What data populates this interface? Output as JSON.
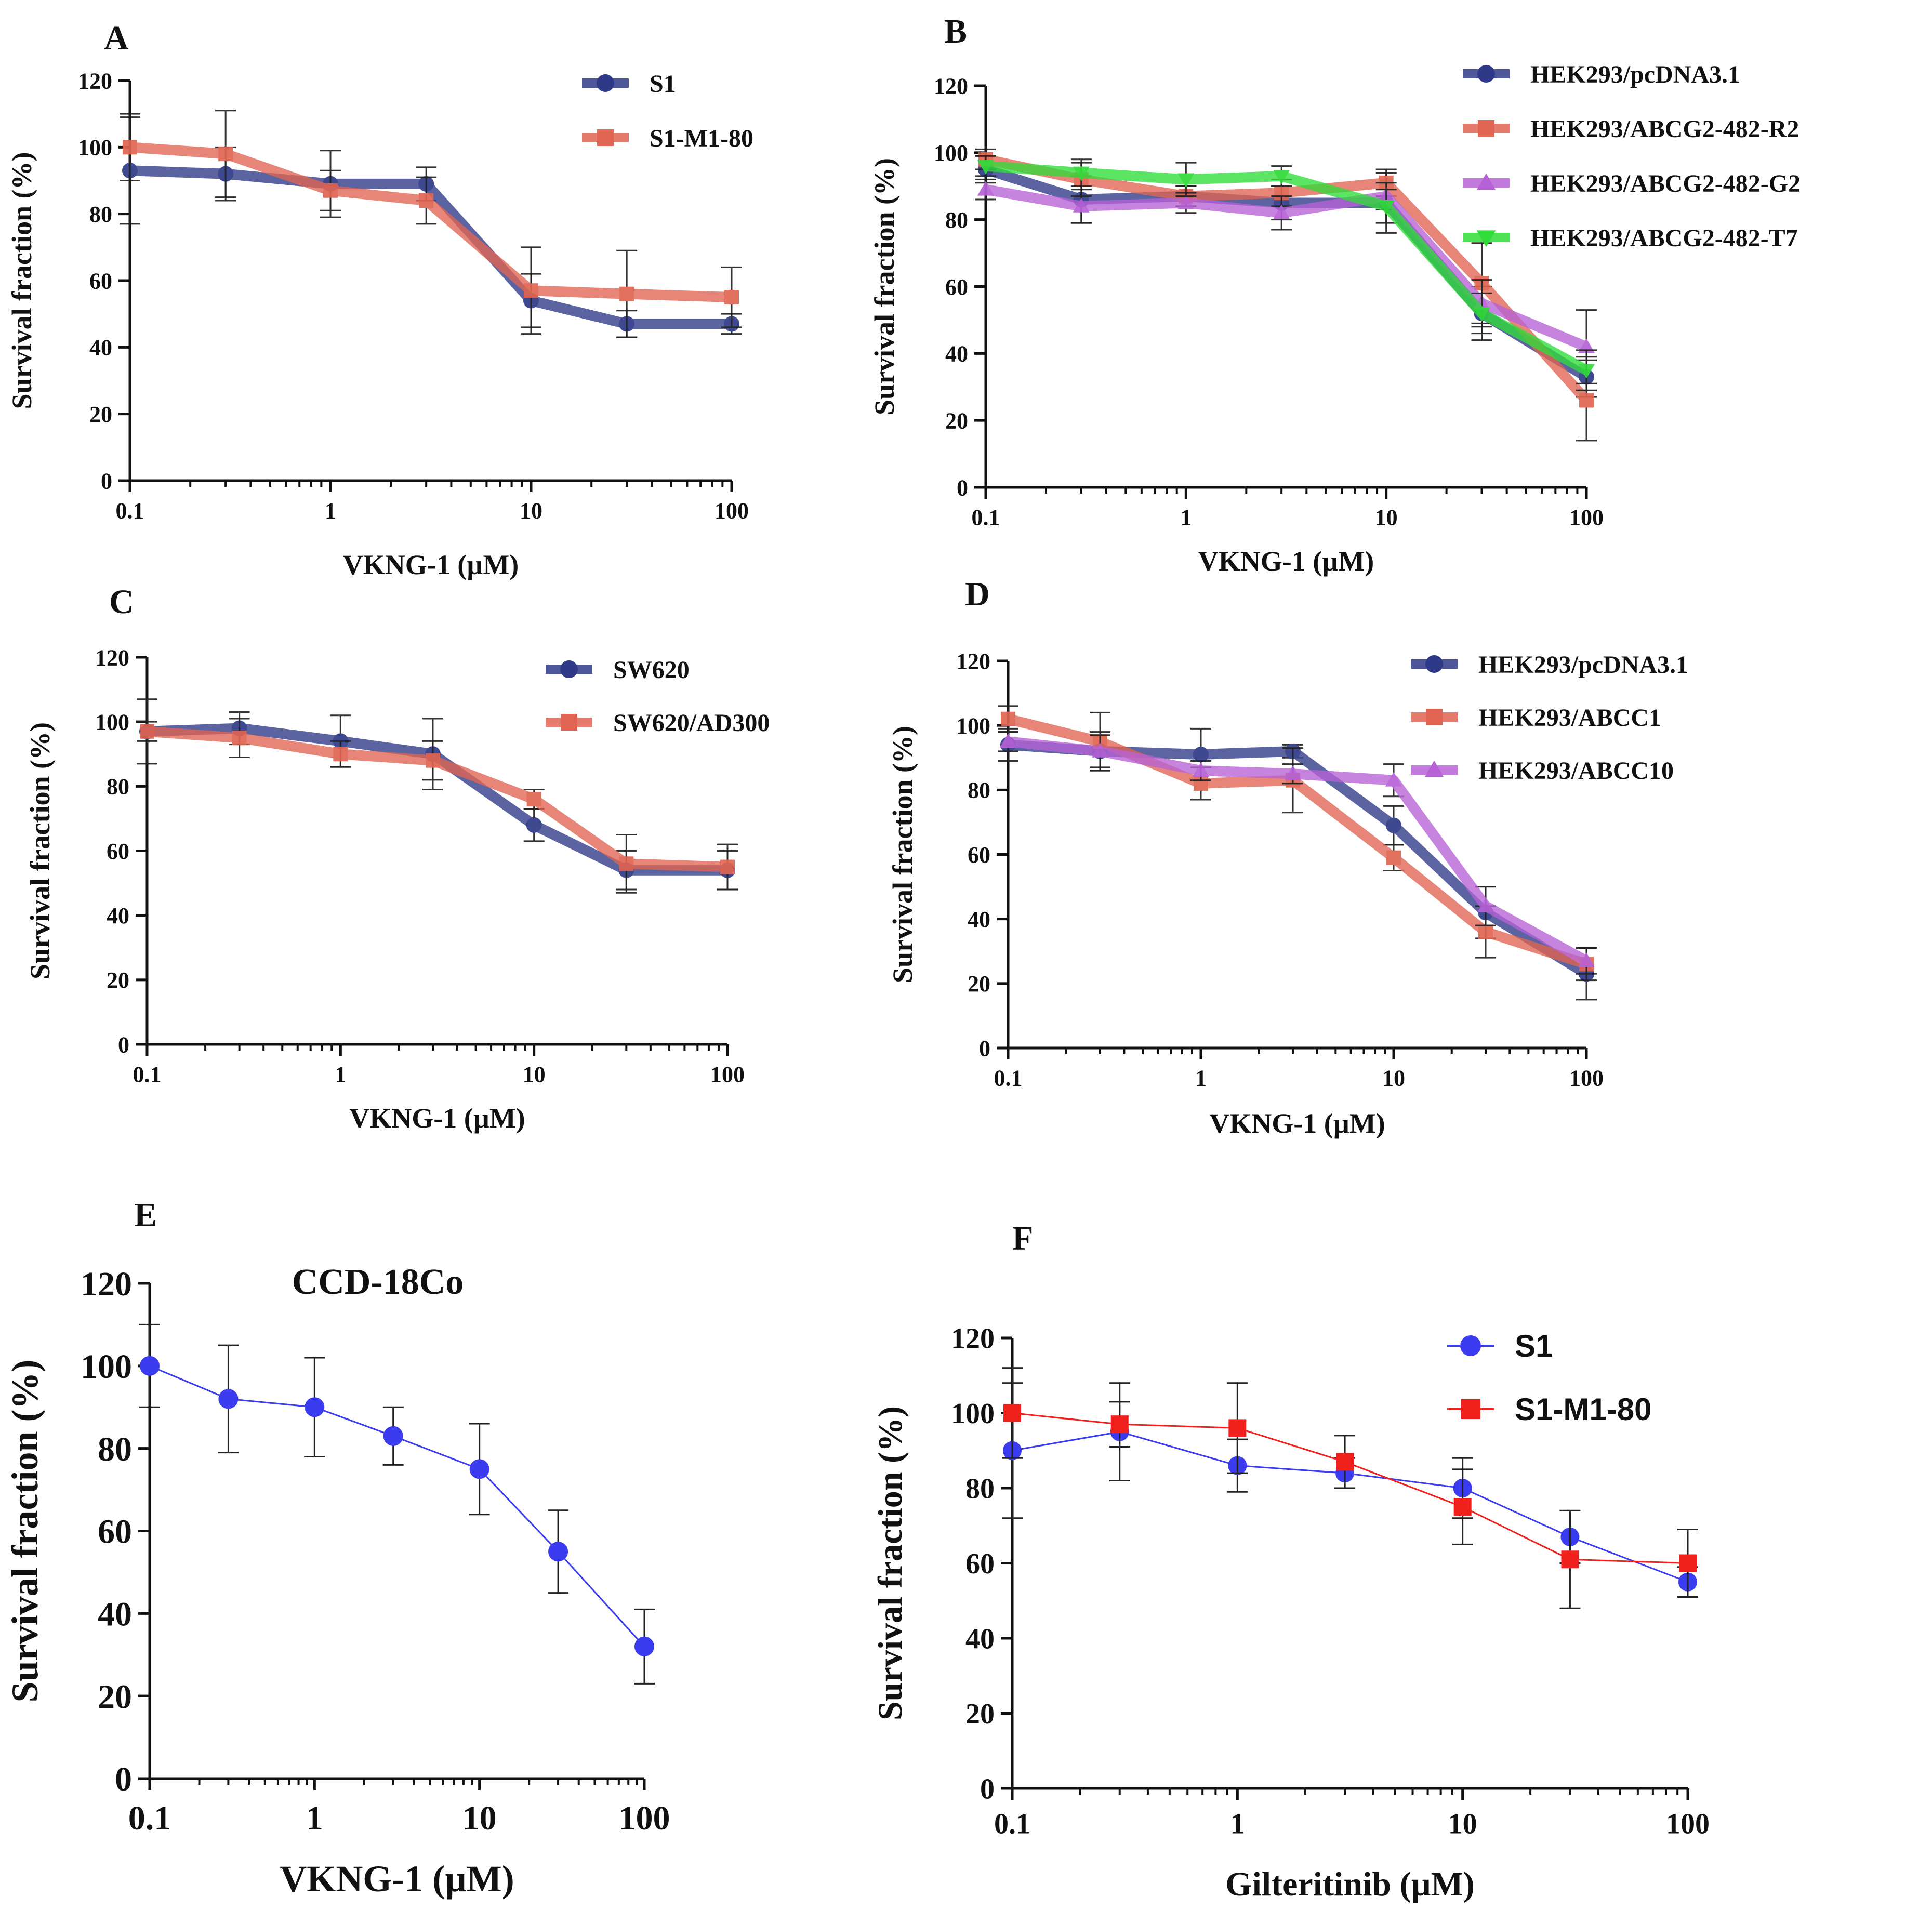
{
  "figure": {
    "colors": {
      "navy": "#2e3a87",
      "salmon": "#e06452",
      "purple": "#b761d6",
      "green": "#2fdc38",
      "blue": "#3b3bef",
      "red": "#f0201c",
      "axis": "#111111"
    }
  },
  "chart_data": [
    {
      "id": "A",
      "type": "line",
      "panel_label": "A",
      "xlabel": "VKNG-1 (µM)",
      "ylabel": "Survival fraction (%)",
      "xscale": "log",
      "xlim": [
        0.1,
        100
      ],
      "ylim": [
        0,
        120
      ],
      "x_ticks": [
        0.1,
        1,
        10,
        100
      ],
      "x_tick_labels": [
        "0.1",
        "1",
        "10",
        "100"
      ],
      "y_ticks": [
        0,
        20,
        40,
        60,
        80,
        100,
        120
      ],
      "y_tick_labels": [
        "0",
        "20",
        "40",
        "60",
        "80",
        "100",
        "120"
      ],
      "x": [
        0.1,
        0.3,
        1,
        3,
        10,
        30,
        100
      ],
      "legend_position": "top-right",
      "series": [
        {
          "name": "S1",
          "color": "#2e3a87",
          "marker": "circle",
          "values": [
            93,
            92,
            89,
            89,
            54,
            47,
            47
          ],
          "errors": [
            16,
            8,
            10,
            5,
            8,
            4,
            3
          ]
        },
        {
          "name": "S1-M1-80",
          "color": "#e06452",
          "marker": "square",
          "values": [
            100,
            98,
            87,
            84,
            57,
            56,
            55
          ],
          "errors": [
            10,
            13,
            6,
            7,
            13,
            13,
            9
          ]
        }
      ]
    },
    {
      "id": "B",
      "type": "line",
      "panel_label": "B",
      "xlabel": "VKNG-1 (µM)",
      "ylabel": "Survival fraction (%)",
      "xscale": "log",
      "xlim": [
        0.1,
        100
      ],
      "ylim": [
        0,
        120
      ],
      "x_ticks": [
        0.1,
        1,
        10,
        100
      ],
      "x_tick_labels": [
        "0.1",
        "1",
        "10",
        "100"
      ],
      "y_ticks": [
        0,
        20,
        40,
        60,
        80,
        100,
        120
      ],
      "y_tick_labels": [
        "0",
        "20",
        "40",
        "60",
        "80",
        "100",
        "120"
      ],
      "x": [
        0.1,
        0.3,
        1,
        3,
        10,
        30,
        100
      ],
      "legend_position": "top-right",
      "series": [
        {
          "name": "HEK293/pcDNA3.1",
          "color": "#2e3a87",
          "marker": "circle",
          "values": [
            95,
            86,
            87,
            85,
            85,
            52,
            33
          ],
          "errors": [
            4,
            7,
            3,
            5,
            9,
            8,
            6
          ]
        },
        {
          "name": "HEK293/ABCG2-482-R2",
          "color": "#e06452",
          "marker": "square",
          "values": [
            98,
            92,
            87,
            88,
            91,
            61,
            26
          ],
          "errors": [
            3,
            5,
            3,
            4,
            4,
            12,
            12
          ]
        },
        {
          "name": "HEK293/ABCG2-482-G2",
          "color": "#b761d6",
          "marker": "triangle",
          "values": [
            89,
            84,
            85,
            82,
            87,
            55,
            42
          ],
          "errors": [
            3,
            5,
            3,
            5,
            4,
            7,
            11
          ]
        },
        {
          "name": "HEK293/ABCG2-482-T7",
          "color": "#2fdc38",
          "marker": "triangle-down",
          "values": [
            96,
            94,
            92,
            93,
            84,
            52,
            35
          ],
          "errors": [
            3,
            4,
            5,
            3,
            5,
            6,
            6
          ]
        }
      ]
    },
    {
      "id": "C",
      "type": "line",
      "panel_label": "C",
      "xlabel": "VKNG-1 (µM)",
      "ylabel": "Survival fraction (%)",
      "xscale": "log",
      "xlim": [
        0.1,
        100
      ],
      "ylim": [
        0,
        120
      ],
      "x_ticks": [
        0.1,
        1,
        10,
        100
      ],
      "x_tick_labels": [
        "0.1",
        "1",
        "10",
        "100"
      ],
      "y_ticks": [
        0,
        20,
        40,
        60,
        80,
        100,
        120
      ],
      "y_tick_labels": [
        "0",
        "20",
        "40",
        "60",
        "80",
        "100",
        "120"
      ],
      "x": [
        0.1,
        0.3,
        1,
        3,
        10,
        30,
        100
      ],
      "legend_position": "top-right",
      "series": [
        {
          "name": "SW620",
          "color": "#2e3a87",
          "marker": "circle",
          "values": [
            97,
            98,
            94,
            90,
            68,
            54,
            54
          ],
          "errors": [
            10,
            5,
            8,
            11,
            5,
            6,
            6
          ]
        },
        {
          "name": "SW620/AD300",
          "color": "#e06452",
          "marker": "square",
          "values": [
            97,
            95,
            90,
            88,
            76,
            56,
            55
          ],
          "errors": [
            3,
            6,
            4,
            6,
            3,
            9,
            7
          ]
        }
      ]
    },
    {
      "id": "D",
      "type": "line",
      "panel_label": "D",
      "xlabel": "VKNG-1 (µM)",
      "ylabel": "Survival fraction (%)",
      "xscale": "log",
      "xlim": [
        0.1,
        100
      ],
      "ylim": [
        0,
        120
      ],
      "x_ticks": [
        0.1,
        1,
        10,
        100
      ],
      "x_tick_labels": [
        "0.1",
        "1",
        "10",
        "100"
      ],
      "y_ticks": [
        0,
        20,
        40,
        60,
        80,
        100,
        120
      ],
      "y_tick_labels": [
        "0",
        "20",
        "40",
        "60",
        "80",
        "100",
        "120"
      ],
      "x": [
        0.1,
        0.3,
        1,
        3,
        10,
        30,
        100
      ],
      "legend_position": "top-right",
      "series": [
        {
          "name": "HEK293/pcDNA3.1",
          "color": "#2e3a87",
          "marker": "circle",
          "values": [
            94,
            92,
            91,
            92,
            69,
            42,
            23
          ],
          "errors": [
            5,
            6,
            8,
            2,
            6,
            8,
            8
          ]
        },
        {
          "name": "HEK293/ABCC1",
          "color": "#e06452",
          "marker": "square",
          "values": [
            102,
            95,
            82,
            83,
            59,
            36,
            26
          ],
          "errors": [
            4,
            9,
            5,
            10,
            4,
            8,
            5
          ]
        },
        {
          "name": "HEK293/ABCC10",
          "color": "#b761d6",
          "marker": "triangle",
          "values": [
            95,
            92,
            86,
            85,
            83,
            44,
            27
          ],
          "errors": [
            3,
            5,
            3,
            3,
            5,
            6,
            4
          ]
        }
      ]
    },
    {
      "id": "E",
      "type": "line",
      "panel_label": "E",
      "title": "CCD-18Co",
      "xlabel": "VKNG-1 (µM)",
      "ylabel": "Survival fraction (%)",
      "xscale": "log",
      "xlim": [
        0.1,
        100
      ],
      "ylim": [
        0,
        120
      ],
      "x_ticks": [
        0.1,
        1,
        10,
        100
      ],
      "x_tick_labels": [
        "0.1",
        "1",
        "10",
        "100"
      ],
      "y_ticks": [
        0,
        20,
        40,
        60,
        80,
        100,
        120
      ],
      "y_tick_labels": [
        "0",
        "20",
        "40",
        "60",
        "80",
        "100",
        "120"
      ],
      "x": [
        0.1,
        0.3,
        1,
        3,
        10,
        30,
        100
      ],
      "series": [
        {
          "name": "CCD-18Co",
          "color": "#3b3bef",
          "marker": "circle",
          "values": [
            100,
            92,
            90,
            83,
            75,
            55,
            32
          ],
          "errors": [
            10,
            13,
            12,
            7,
            11,
            10,
            9
          ]
        }
      ]
    },
    {
      "id": "F",
      "type": "line",
      "panel_label": "F",
      "xlabel": "Gilteritinib (µM)",
      "ylabel": "Survival fraction (%)",
      "xscale": "log",
      "xlim": [
        0.1,
        100
      ],
      "ylim": [
        0,
        120
      ],
      "x_ticks": [
        0.1,
        1,
        10,
        100
      ],
      "x_tick_labels": [
        "0.1",
        "1",
        "10",
        "100"
      ],
      "y_ticks": [
        0,
        20,
        40,
        60,
        80,
        100,
        120
      ],
      "y_tick_labels": [
        "0",
        "20",
        "40",
        "60",
        "80",
        "100",
        "120"
      ],
      "x": [
        0.1,
        0.3,
        1,
        3,
        10,
        30,
        100
      ],
      "legend_position": "top-right",
      "series": [
        {
          "name": "S1",
          "color": "#3b3bef",
          "marker": "circle",
          "values": [
            90,
            95,
            86,
            84,
            80,
            67,
            55
          ],
          "errors": [
            18,
            13,
            7,
            4,
            8,
            7,
            4
          ]
        },
        {
          "name": "S1-M1-80",
          "color": "#f0201c",
          "marker": "square",
          "values": [
            100,
            97,
            96,
            87,
            75,
            61,
            60
          ],
          "errors": [
            12,
            6,
            12,
            7,
            10,
            13,
            9
          ]
        }
      ]
    }
  ]
}
